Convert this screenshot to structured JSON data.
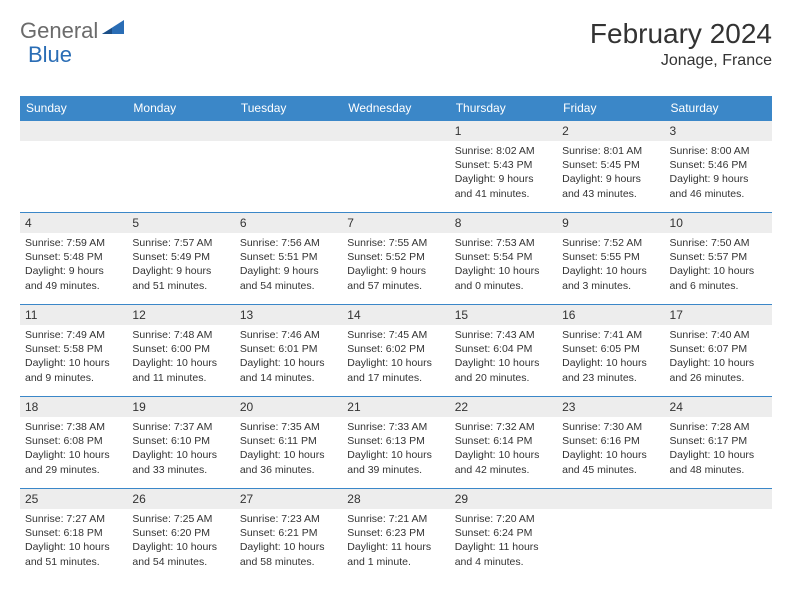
{
  "logo": {
    "part1": "General",
    "part2": "Blue"
  },
  "title": "February 2024",
  "location": "Jonage, France",
  "colors": {
    "header_bg": "#3b87c8",
    "header_fg": "#ffffff",
    "daynum_bg": "#ededed",
    "border": "#3b87c8",
    "text": "#333333",
    "logo_gray": "#6b6b6b",
    "logo_blue": "#2a6db5",
    "page_bg": "#ffffff"
  },
  "day_headers": [
    "Sunday",
    "Monday",
    "Tuesday",
    "Wednesday",
    "Thursday",
    "Friday",
    "Saturday"
  ],
  "weeks": [
    [
      {
        "num": "",
        "sunrise": "",
        "sunset": "",
        "daylight": ""
      },
      {
        "num": "",
        "sunrise": "",
        "sunset": "",
        "daylight": ""
      },
      {
        "num": "",
        "sunrise": "",
        "sunset": "",
        "daylight": ""
      },
      {
        "num": "",
        "sunrise": "",
        "sunset": "",
        "daylight": ""
      },
      {
        "num": "1",
        "sunrise": "Sunrise: 8:02 AM",
        "sunset": "Sunset: 5:43 PM",
        "daylight": "Daylight: 9 hours and 41 minutes."
      },
      {
        "num": "2",
        "sunrise": "Sunrise: 8:01 AM",
        "sunset": "Sunset: 5:45 PM",
        "daylight": "Daylight: 9 hours and 43 minutes."
      },
      {
        "num": "3",
        "sunrise": "Sunrise: 8:00 AM",
        "sunset": "Sunset: 5:46 PM",
        "daylight": "Daylight: 9 hours and 46 minutes."
      }
    ],
    [
      {
        "num": "4",
        "sunrise": "Sunrise: 7:59 AM",
        "sunset": "Sunset: 5:48 PM",
        "daylight": "Daylight: 9 hours and 49 minutes."
      },
      {
        "num": "5",
        "sunrise": "Sunrise: 7:57 AM",
        "sunset": "Sunset: 5:49 PM",
        "daylight": "Daylight: 9 hours and 51 minutes."
      },
      {
        "num": "6",
        "sunrise": "Sunrise: 7:56 AM",
        "sunset": "Sunset: 5:51 PM",
        "daylight": "Daylight: 9 hours and 54 minutes."
      },
      {
        "num": "7",
        "sunrise": "Sunrise: 7:55 AM",
        "sunset": "Sunset: 5:52 PM",
        "daylight": "Daylight: 9 hours and 57 minutes."
      },
      {
        "num": "8",
        "sunrise": "Sunrise: 7:53 AM",
        "sunset": "Sunset: 5:54 PM",
        "daylight": "Daylight: 10 hours and 0 minutes."
      },
      {
        "num": "9",
        "sunrise": "Sunrise: 7:52 AM",
        "sunset": "Sunset: 5:55 PM",
        "daylight": "Daylight: 10 hours and 3 minutes."
      },
      {
        "num": "10",
        "sunrise": "Sunrise: 7:50 AM",
        "sunset": "Sunset: 5:57 PM",
        "daylight": "Daylight: 10 hours and 6 minutes."
      }
    ],
    [
      {
        "num": "11",
        "sunrise": "Sunrise: 7:49 AM",
        "sunset": "Sunset: 5:58 PM",
        "daylight": "Daylight: 10 hours and 9 minutes."
      },
      {
        "num": "12",
        "sunrise": "Sunrise: 7:48 AM",
        "sunset": "Sunset: 6:00 PM",
        "daylight": "Daylight: 10 hours and 11 minutes."
      },
      {
        "num": "13",
        "sunrise": "Sunrise: 7:46 AM",
        "sunset": "Sunset: 6:01 PM",
        "daylight": "Daylight: 10 hours and 14 minutes."
      },
      {
        "num": "14",
        "sunrise": "Sunrise: 7:45 AM",
        "sunset": "Sunset: 6:02 PM",
        "daylight": "Daylight: 10 hours and 17 minutes."
      },
      {
        "num": "15",
        "sunrise": "Sunrise: 7:43 AM",
        "sunset": "Sunset: 6:04 PM",
        "daylight": "Daylight: 10 hours and 20 minutes."
      },
      {
        "num": "16",
        "sunrise": "Sunrise: 7:41 AM",
        "sunset": "Sunset: 6:05 PM",
        "daylight": "Daylight: 10 hours and 23 minutes."
      },
      {
        "num": "17",
        "sunrise": "Sunrise: 7:40 AM",
        "sunset": "Sunset: 6:07 PM",
        "daylight": "Daylight: 10 hours and 26 minutes."
      }
    ],
    [
      {
        "num": "18",
        "sunrise": "Sunrise: 7:38 AM",
        "sunset": "Sunset: 6:08 PM",
        "daylight": "Daylight: 10 hours and 29 minutes."
      },
      {
        "num": "19",
        "sunrise": "Sunrise: 7:37 AM",
        "sunset": "Sunset: 6:10 PM",
        "daylight": "Daylight: 10 hours and 33 minutes."
      },
      {
        "num": "20",
        "sunrise": "Sunrise: 7:35 AM",
        "sunset": "Sunset: 6:11 PM",
        "daylight": "Daylight: 10 hours and 36 minutes."
      },
      {
        "num": "21",
        "sunrise": "Sunrise: 7:33 AM",
        "sunset": "Sunset: 6:13 PM",
        "daylight": "Daylight: 10 hours and 39 minutes."
      },
      {
        "num": "22",
        "sunrise": "Sunrise: 7:32 AM",
        "sunset": "Sunset: 6:14 PM",
        "daylight": "Daylight: 10 hours and 42 minutes."
      },
      {
        "num": "23",
        "sunrise": "Sunrise: 7:30 AM",
        "sunset": "Sunset: 6:16 PM",
        "daylight": "Daylight: 10 hours and 45 minutes."
      },
      {
        "num": "24",
        "sunrise": "Sunrise: 7:28 AM",
        "sunset": "Sunset: 6:17 PM",
        "daylight": "Daylight: 10 hours and 48 minutes."
      }
    ],
    [
      {
        "num": "25",
        "sunrise": "Sunrise: 7:27 AM",
        "sunset": "Sunset: 6:18 PM",
        "daylight": "Daylight: 10 hours and 51 minutes."
      },
      {
        "num": "26",
        "sunrise": "Sunrise: 7:25 AM",
        "sunset": "Sunset: 6:20 PM",
        "daylight": "Daylight: 10 hours and 54 minutes."
      },
      {
        "num": "27",
        "sunrise": "Sunrise: 7:23 AM",
        "sunset": "Sunset: 6:21 PM",
        "daylight": "Daylight: 10 hours and 58 minutes."
      },
      {
        "num": "28",
        "sunrise": "Sunrise: 7:21 AM",
        "sunset": "Sunset: 6:23 PM",
        "daylight": "Daylight: 11 hours and 1 minute."
      },
      {
        "num": "29",
        "sunrise": "Sunrise: 7:20 AM",
        "sunset": "Sunset: 6:24 PM",
        "daylight": "Daylight: 11 hours and 4 minutes."
      },
      {
        "num": "",
        "sunrise": "",
        "sunset": "",
        "daylight": ""
      },
      {
        "num": "",
        "sunrise": "",
        "sunset": "",
        "daylight": ""
      }
    ]
  ]
}
